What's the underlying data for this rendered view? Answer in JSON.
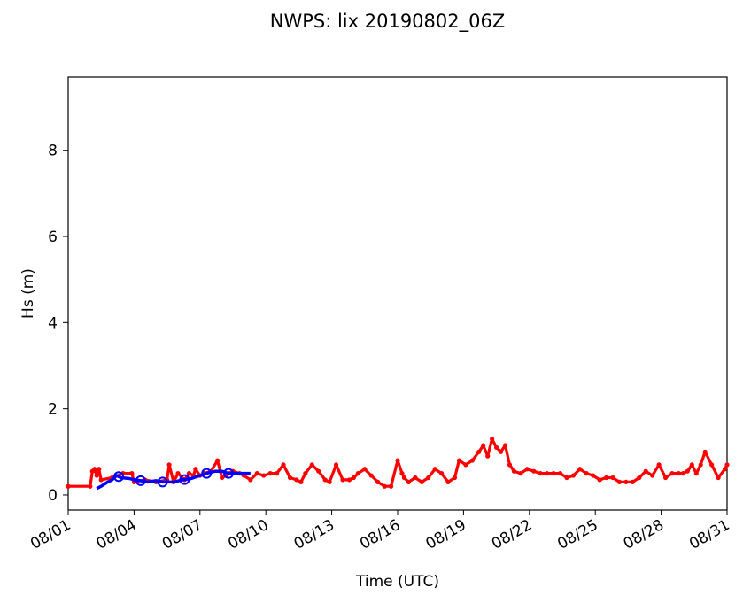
{
  "chart_data": {
    "type": "line",
    "title": "NWPS: lix 20190802_06Z",
    "xlabel": "Time (UTC)",
    "ylabel": "Hs (m)",
    "x_start": "2019-08-01",
    "xlim": [
      "08/01",
      "08/31"
    ],
    "ylim": [
      -0.35,
      9.7
    ],
    "x_ticks": [
      "08/01",
      "08/04",
      "08/07",
      "08/10",
      "08/13",
      "08/16",
      "08/19",
      "08/22",
      "08/25",
      "08/28",
      "08/31"
    ],
    "y_ticks": [
      0,
      2,
      4,
      6,
      8
    ],
    "grid": false,
    "series": [
      {
        "color": "#ff0000",
        "marker": "small-dot",
        "x": [
          0.0,
          1.0,
          1.1,
          1.2,
          1.3,
          1.4,
          1.5,
          2.0,
          2.5,
          2.9,
          3.0,
          3.5,
          4.0,
          4.5,
          4.6,
          4.8,
          5.0,
          5.3,
          5.5,
          5.7,
          5.8,
          6.0,
          6.2,
          6.5,
          6.8,
          7.0,
          7.2,
          7.3,
          7.5,
          7.8,
          8.0,
          8.3,
          8.6,
          8.9,
          9.2,
          9.5,
          9.8,
          10.1,
          10.4,
          10.6,
          10.8,
          11.1,
          11.4,
          11.7,
          11.9,
          12.2,
          12.5,
          12.8,
          13.0,
          13.2,
          13.5,
          13.8,
          14.1,
          14.4,
          14.7,
          15.0,
          15.2,
          15.3,
          15.5,
          15.8,
          16.1,
          16.4,
          16.7,
          17.0,
          17.3,
          17.6,
          17.8,
          18.1,
          18.4,
          18.7,
          18.9,
          19.1,
          19.3,
          19.5,
          19.7,
          19.9,
          20.1,
          20.3,
          20.6,
          20.9,
          21.2,
          21.5,
          21.8,
          22.1,
          22.4,
          22.7,
          23.0,
          23.3,
          23.6,
          23.9,
          24.2,
          24.5,
          24.8,
          25.1,
          25.4,
          25.7,
          26.0,
          26.3,
          26.6,
          26.9,
          27.2,
          27.5,
          27.8,
          28.0,
          28.2,
          28.4,
          28.6,
          28.8,
          29.0,
          29.3,
          29.6,
          29.9,
          30.0
        ],
        "y": [
          0.2,
          0.2,
          0.55,
          0.6,
          0.45,
          0.6,
          0.35,
          0.4,
          0.5,
          0.5,
          0.3,
          0.35,
          0.3,
          0.35,
          0.7,
          0.3,
          0.5,
          0.35,
          0.5,
          0.45,
          0.6,
          0.45,
          0.5,
          0.55,
          0.8,
          0.4,
          0.45,
          0.5,
          0.55,
          0.5,
          0.45,
          0.35,
          0.5,
          0.45,
          0.5,
          0.5,
          0.7,
          0.4,
          0.35,
          0.3,
          0.5,
          0.7,
          0.55,
          0.35,
          0.3,
          0.7,
          0.35,
          0.35,
          0.4,
          0.5,
          0.6,
          0.45,
          0.3,
          0.2,
          0.2,
          0.8,
          0.5,
          0.4,
          0.3,
          0.4,
          0.3,
          0.4,
          0.6,
          0.5,
          0.3,
          0.4,
          0.8,
          0.7,
          0.8,
          1.0,
          1.15,
          0.9,
          1.3,
          1.1,
          1.0,
          1.15,
          0.7,
          0.55,
          0.5,
          0.6,
          0.55,
          0.5,
          0.5,
          0.5,
          0.5,
          0.4,
          0.45,
          0.6,
          0.5,
          0.45,
          0.35,
          0.4,
          0.4,
          0.3,
          0.3,
          0.3,
          0.4,
          0.55,
          0.45,
          0.7,
          0.4,
          0.5,
          0.5,
          0.5,
          0.55,
          0.7,
          0.5,
          0.7,
          1.0,
          0.7,
          0.4,
          0.6,
          0.7
        ]
      },
      {
        "color": "#0000ff",
        "marker": "open-circle",
        "x": [
          1.3,
          1.5,
          1.8,
          2.0,
          2.2,
          2.4,
          2.8,
          3.0,
          3.3,
          3.6,
          4.0,
          4.3,
          4.8,
          5.2,
          5.6,
          6.0,
          6.3,
          6.7,
          7.0,
          7.3,
          7.8,
          8.3
        ],
        "y": [
          0.15,
          0.2,
          0.3,
          0.35,
          0.45,
          0.4,
          0.38,
          0.35,
          0.33,
          0.3,
          0.33,
          0.3,
          0.3,
          0.35,
          0.38,
          0.45,
          0.5,
          0.55,
          0.55,
          0.5,
          0.5,
          0.5
        ],
        "circle_points": [
          2.3,
          3.3,
          4.3,
          5.3,
          6.3,
          7.3
        ]
      }
    ]
  }
}
